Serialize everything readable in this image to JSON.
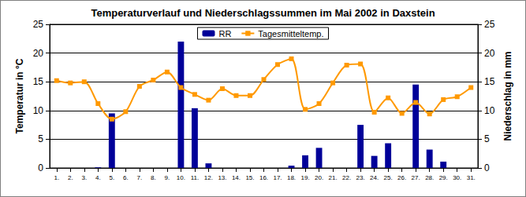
{
  "chart_data": {
    "type": "bar",
    "title": "Temperaturverlauf und Niederschlagssummen im Mai 2002 in Daxstein",
    "y_label": "Temperatur in °C",
    "y2_label": "Niederschlag in mm",
    "categories": [
      "1.",
      "2.",
      "3.",
      "4.",
      "5.",
      "6.",
      "7.",
      "8.",
      "9.",
      "10.",
      "11.",
      "12.",
      "13.",
      "14.",
      "15.",
      "16.",
      "17.",
      "18.",
      "19.",
      "20.",
      "21.",
      "22.",
      "23.",
      "24.",
      "25.",
      "26.",
      "27.",
      "28.",
      "29.",
      "30.",
      "31."
    ],
    "series": [
      {
        "name": "RR",
        "type": "bar",
        "axis": "y2",
        "color": "#000099",
        "values": [
          0,
          0,
          0,
          0.1,
          9.5,
          0,
          0,
          0,
          0,
          22.0,
          10.4,
          0.8,
          0,
          0,
          0,
          0,
          0,
          0.4,
          2.2,
          3.5,
          0,
          0,
          7.5,
          2.1,
          4.3,
          0,
          14.5,
          3.2,
          1.1,
          0,
          0
        ]
      },
      {
        "name": "Tagesmitteltemp.",
        "type": "line",
        "color": "#ff9900",
        "marker": "square",
        "values": [
          15.2,
          14.8,
          15.0,
          11.2,
          8.5,
          9.8,
          14.2,
          15.3,
          16.7,
          14.0,
          12.8,
          11.8,
          13.8,
          12.6,
          12.6,
          15.4,
          18.0,
          19.0,
          10.2,
          11.2,
          14.8,
          17.9,
          18.1,
          9.7,
          12.2,
          9.5,
          11.4,
          9.4,
          11.9,
          12.4,
          14.0
        ]
      }
    ],
    "ylim": [
      0,
      25
    ],
    "yticks": [
      0,
      5,
      10,
      15,
      20,
      25
    ],
    "y2lim": [
      0,
      25
    ],
    "y2ticks": [
      0,
      5,
      10,
      15,
      20,
      25
    ],
    "grid": true,
    "legend": "top"
  }
}
